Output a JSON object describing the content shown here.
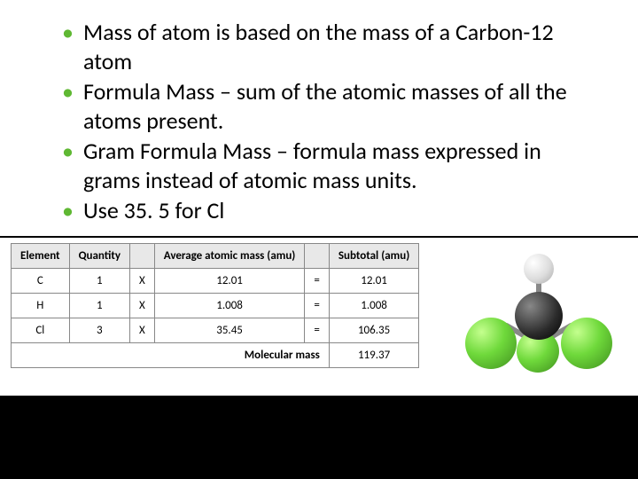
{
  "bullets": [
    "Mass of atom is based on the mass of a Carbon-12 atom",
    "Formula Mass – sum of the atomic masses of all the atoms present.",
    "Gram Formula Mass – formula mass expressed in grams instead of atomic mass units.",
    "Use 35. 5 for Cl"
  ],
  "table": {
    "headers": {
      "element": "Element",
      "quantity": "Quantity",
      "avg_mass": "Average atomic mass (amu)",
      "subtotal": "Subtotal (amu)"
    },
    "rows": [
      {
        "el": "C",
        "qty": "1",
        "op1": "X",
        "mass": "12.01",
        "op2": "=",
        "sub": "12.01"
      },
      {
        "el": "H",
        "qty": "1",
        "op1": "X",
        "mass": "1.008",
        "op2": "=",
        "sub": "1.008"
      },
      {
        "el": "Cl",
        "qty": "3",
        "op1": "X",
        "mass": "35.45",
        "op2": "=",
        "sub": "106.35"
      }
    ],
    "footer_label": "Molecular mass",
    "footer_value": "119.37"
  },
  "molecule": {
    "center_color": "#2a2a2a",
    "h_color": "#ffffff",
    "cl_color": "#6fd93b"
  }
}
